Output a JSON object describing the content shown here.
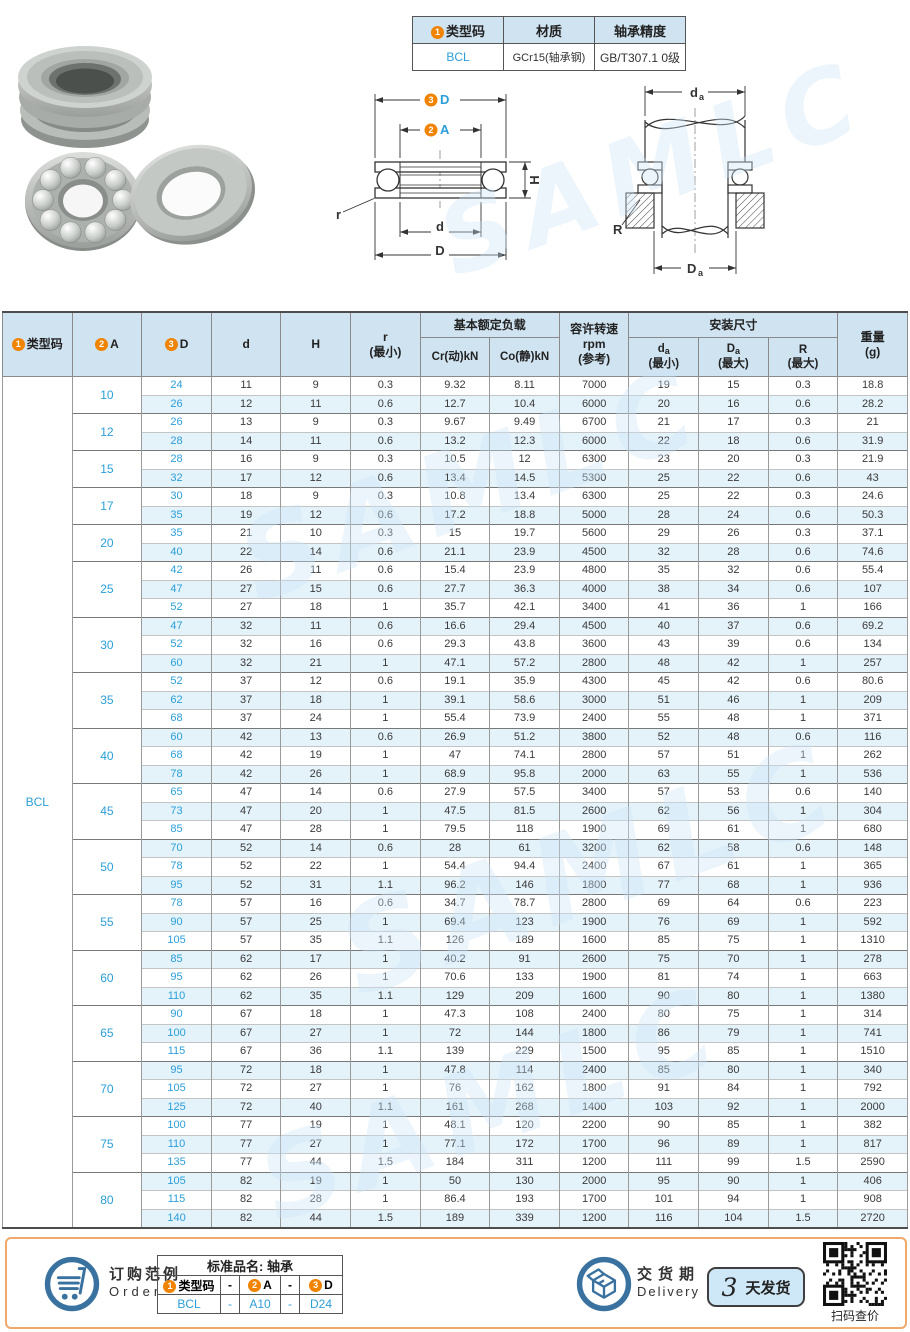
{
  "watermark": "SAMLC",
  "info_table": {
    "col1_marker": "1",
    "col1_header": "类型码",
    "col2_header": "材质",
    "col3_header": "轴承精度",
    "type_code": "BCL",
    "material": "GCr15(轴承钢)",
    "precision": "GB/T307.1 0级"
  },
  "diagram_front": {
    "top_marker": "3",
    "top_label": "D",
    "mid_marker": "2",
    "mid_label": "A",
    "h_label": "H",
    "r_label": "r",
    "d_label": "d",
    "outer_label": "D"
  },
  "diagram_mount": {
    "top_label": "d",
    "top_sub": "a",
    "bottom_label": "D",
    "bottom_sub": "a",
    "r_label": "R"
  },
  "main_table": {
    "type_code": "BCL",
    "headers": {
      "col_type_marker": "1",
      "col_type": "类型码",
      "col_a_marker": "2",
      "col_a": "A",
      "col_d3_marker": "3",
      "col_d3": "D",
      "col_d": "d",
      "col_h": "H",
      "col_r_line1": "r",
      "col_r_line2": "(最小)",
      "group_load": "基本额定负载",
      "col_cr": "Cr(动)kN",
      "col_co": "Co(静)kN",
      "col_rpm_line1": "容许转速",
      "col_rpm_line2": "rpm",
      "col_rpm_line3": "(参考)",
      "group_mount": "安装尺寸",
      "col_da_sym": "d",
      "col_da_sub": "a",
      "col_da_line2": "(最小)",
      "col_Da_sym": "D",
      "col_Da_sub": "a",
      "col_Da_line2": "(最大)",
      "col_R_line1": "R",
      "col_R_line2": "(最大)",
      "col_w_line1": "重量",
      "col_w_line2": "(g)"
    },
    "groups": [
      {
        "a": "10",
        "rows": [
          [
            "24",
            "11",
            "9",
            "0.3",
            "9.32",
            "8.11",
            "7000",
            "19",
            "15",
            "0.3",
            "18.8"
          ],
          [
            "26",
            "12",
            "11",
            "0.6",
            "12.7",
            "10.4",
            "6000",
            "20",
            "16",
            "0.6",
            "28.2"
          ]
        ]
      },
      {
        "a": "12",
        "rows": [
          [
            "26",
            "13",
            "9",
            "0.3",
            "9.67",
            "9.49",
            "6700",
            "21",
            "17",
            "0.3",
            "21"
          ],
          [
            "28",
            "14",
            "11",
            "0.6",
            "13.2",
            "12.3",
            "6000",
            "22",
            "18",
            "0.6",
            "31.9"
          ]
        ]
      },
      {
        "a": "15",
        "rows": [
          [
            "28",
            "16",
            "9",
            "0.3",
            "10.5",
            "12",
            "6300",
            "23",
            "20",
            "0.3",
            "21.9"
          ],
          [
            "32",
            "17",
            "12",
            "0.6",
            "13.4",
            "14.5",
            "5300",
            "25",
            "22",
            "0.6",
            "43"
          ]
        ]
      },
      {
        "a": "17",
        "rows": [
          [
            "30",
            "18",
            "9",
            "0.3",
            "10.8",
            "13.4",
            "6300",
            "25",
            "22",
            "0.3",
            "24.6"
          ],
          [
            "35",
            "19",
            "12",
            "0.6",
            "17.2",
            "18.8",
            "5000",
            "28",
            "24",
            "0.6",
            "50.3"
          ]
        ]
      },
      {
        "a": "20",
        "rows": [
          [
            "35",
            "21",
            "10",
            "0.3",
            "15",
            "19.7",
            "5600",
            "29",
            "26",
            "0.3",
            "37.1"
          ],
          [
            "40",
            "22",
            "14",
            "0.6",
            "21.1",
            "23.9",
            "4500",
            "32",
            "28",
            "0.6",
            "74.6"
          ]
        ]
      },
      {
        "a": "25",
        "rows": [
          [
            "42",
            "26",
            "11",
            "0.6",
            "15.4",
            "23.9",
            "4800",
            "35",
            "32",
            "0.6",
            "55.4"
          ],
          [
            "47",
            "27",
            "15",
            "0.6",
            "27.7",
            "36.3",
            "4000",
            "38",
            "34",
            "0.6",
            "107"
          ],
          [
            "52",
            "27",
            "18",
            "1",
            "35.7",
            "42.1",
            "3400",
            "41",
            "36",
            "1",
            "166"
          ]
        ]
      },
      {
        "a": "30",
        "rows": [
          [
            "47",
            "32",
            "11",
            "0.6",
            "16.6",
            "29.4",
            "4500",
            "40",
            "37",
            "0.6",
            "69.2"
          ],
          [
            "52",
            "32",
            "16",
            "0.6",
            "29.3",
            "43.8",
            "3600",
            "43",
            "39",
            "0.6",
            "134"
          ],
          [
            "60",
            "32",
            "21",
            "1",
            "47.1",
            "57.2",
            "2800",
            "48",
            "42",
            "1",
            "257"
          ]
        ]
      },
      {
        "a": "35",
        "rows": [
          [
            "52",
            "37",
            "12",
            "0.6",
            "19.1",
            "35.9",
            "4300",
            "45",
            "42",
            "0.6",
            "80.6"
          ],
          [
            "62",
            "37",
            "18",
            "1",
            "39.1",
            "58.6",
            "3000",
            "51",
            "46",
            "1",
            "209"
          ],
          [
            "68",
            "37",
            "24",
            "1",
            "55.4",
            "73.9",
            "2400",
            "55",
            "48",
            "1",
            "371"
          ]
        ]
      },
      {
        "a": "40",
        "rows": [
          [
            "60",
            "42",
            "13",
            "0.6",
            "26.9",
            "51.2",
            "3800",
            "52",
            "48",
            "0.6",
            "116"
          ],
          [
            "68",
            "42",
            "19",
            "1",
            "47",
            "74.1",
            "2800",
            "57",
            "51",
            "1",
            "262"
          ],
          [
            "78",
            "42",
            "26",
            "1",
            "68.9",
            "95.8",
            "2000",
            "63",
            "55",
            "1",
            "536"
          ]
        ]
      },
      {
        "a": "45",
        "rows": [
          [
            "65",
            "47",
            "14",
            "0.6",
            "27.9",
            "57.5",
            "3400",
            "57",
            "53",
            "0.6",
            "140"
          ],
          [
            "73",
            "47",
            "20",
            "1",
            "47.5",
            "81.5",
            "2600",
            "62",
            "56",
            "1",
            "304"
          ],
          [
            "85",
            "47",
            "28",
            "1",
            "79.5",
            "118",
            "1900",
            "69",
            "61",
            "1",
            "680"
          ]
        ]
      },
      {
        "a": "50",
        "rows": [
          [
            "70",
            "52",
            "14",
            "0.6",
            "28",
            "61",
            "3200",
            "62",
            "58",
            "0.6",
            "148"
          ],
          [
            "78",
            "52",
            "22",
            "1",
            "54.4",
            "94.4",
            "2400",
            "67",
            "61",
            "1",
            "365"
          ],
          [
            "95",
            "52",
            "31",
            "1.1",
            "96.2",
            "146",
            "1800",
            "77",
            "68",
            "1",
            "936"
          ]
        ]
      },
      {
        "a": "55",
        "rows": [
          [
            "78",
            "57",
            "16",
            "0.6",
            "34.7",
            "78.7",
            "2800",
            "69",
            "64",
            "0.6",
            "223"
          ],
          [
            "90",
            "57",
            "25",
            "1",
            "69.4",
            "123",
            "1900",
            "76",
            "69",
            "1",
            "592"
          ],
          [
            "105",
            "57",
            "35",
            "1.1",
            "126",
            "189",
            "1600",
            "85",
            "75",
            "1",
            "1310"
          ]
        ]
      },
      {
        "a": "60",
        "rows": [
          [
            "85",
            "62",
            "17",
            "1",
            "40.2",
            "91",
            "2600",
            "75",
            "70",
            "1",
            "278"
          ],
          [
            "95",
            "62",
            "26",
            "1",
            "70.6",
            "133",
            "1900",
            "81",
            "74",
            "1",
            "663"
          ],
          [
            "110",
            "62",
            "35",
            "1.1",
            "129",
            "209",
            "1600",
            "90",
            "80",
            "1",
            "1380"
          ]
        ]
      },
      {
        "a": "65",
        "rows": [
          [
            "90",
            "67",
            "18",
            "1",
            "47.3",
            "108",
            "2400",
            "80",
            "75",
            "1",
            "314"
          ],
          [
            "100",
            "67",
            "27",
            "1",
            "72",
            "144",
            "1800",
            "86",
            "79",
            "1",
            "741"
          ],
          [
            "115",
            "67",
            "36",
            "1.1",
            "139",
            "229",
            "1500",
            "95",
            "85",
            "1",
            "1510"
          ]
        ]
      },
      {
        "a": "70",
        "rows": [
          [
            "95",
            "72",
            "18",
            "1",
            "47.8",
            "114",
            "2400",
            "85",
            "80",
            "1",
            "340"
          ],
          [
            "105",
            "72",
            "27",
            "1",
            "76",
            "162",
            "1800",
            "91",
            "84",
            "1",
            "792"
          ],
          [
            "125",
            "72",
            "40",
            "1.1",
            "161",
            "268",
            "1400",
            "103",
            "92",
            "1",
            "2000"
          ]
        ]
      },
      {
        "a": "75",
        "rows": [
          [
            "100",
            "77",
            "19",
            "1",
            "48.1",
            "120",
            "2200",
            "90",
            "85",
            "1",
            "382"
          ],
          [
            "110",
            "77",
            "27",
            "1",
            "77.1",
            "172",
            "1700",
            "96",
            "89",
            "1",
            "817"
          ],
          [
            "135",
            "77",
            "44",
            "1.5",
            "184",
            "311",
            "1200",
            "111",
            "99",
            "1.5",
            "2590"
          ]
        ]
      },
      {
        "a": "80",
        "rows": [
          [
            "105",
            "82",
            "19",
            "1",
            "50",
            "130",
            "2000",
            "95",
            "90",
            "1",
            "406"
          ],
          [
            "115",
            "82",
            "28",
            "1",
            "86.4",
            "193",
            "1700",
            "101",
            "94",
            "1",
            "908"
          ],
          [
            "140",
            "82",
            "44",
            "1.5",
            "189",
            "339",
            "1200",
            "116",
            "104",
            "1.5",
            "2720"
          ]
        ]
      }
    ]
  },
  "footer": {
    "order": {
      "title_cn": "订购范例",
      "title_en": "Order",
      "table_title": "标准品名: 轴承",
      "col1_marker": "1",
      "col1": "类型码",
      "sep1": "-",
      "col2_marker": "2",
      "col2": "A",
      "sep2": "-",
      "col3_marker": "3",
      "col3": "D",
      "val1": "BCL",
      "vsep1": "-",
      "val2": "A10",
      "vsep2": "-",
      "val3": "D24"
    },
    "delivery": {
      "title_cn": "交货期",
      "title_en": "Delivery",
      "days": "3",
      "days_label": "天发货",
      "qr_caption": "扫码查价"
    }
  },
  "colors": {
    "accent_blue": "#2b9fd9",
    "marker_orange": "#f08300",
    "header_bg": "#cfe3f1",
    "alt_row_bg": "#e4f2fa",
    "footer_border": "#f0a96a",
    "icon_blue": "#39719f"
  }
}
